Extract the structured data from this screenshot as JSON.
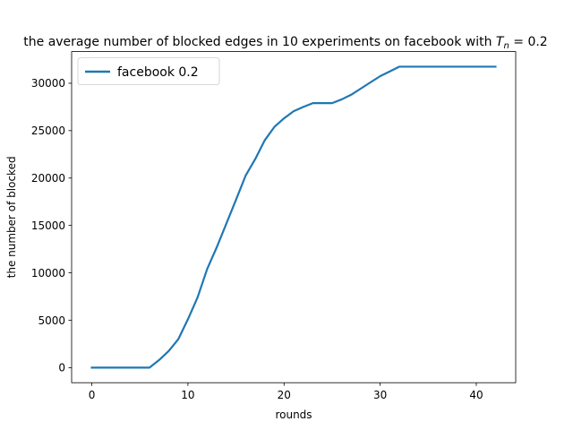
{
  "chart_data": {
    "type": "line",
    "title_prefix": "the average number of blocked edges in 10 experiments on facebook with ",
    "title_var": "T",
    "title_sub": "n",
    "title_suffix": " = 0.2",
    "xlabel": "rounds",
    "ylabel": "the number of blocked",
    "xlim": [
      -2.1,
      44.1
    ],
    "ylim": [
      -1590,
      33340
    ],
    "xticks": [
      0,
      10,
      20,
      30,
      40
    ],
    "yticks": [
      0,
      5000,
      10000,
      15000,
      20000,
      25000,
      30000
    ],
    "grid": false,
    "legend_position": "upper-left",
    "color": "#1f77b4",
    "series": [
      {
        "name": "facebook 0.2",
        "x": [
          0,
          1,
          2,
          3,
          4,
          5,
          6,
          7,
          8,
          9,
          10,
          11,
          12,
          13,
          14,
          15,
          16,
          17,
          18,
          19,
          20,
          21,
          22,
          23,
          24,
          25,
          26,
          27,
          28,
          29,
          30,
          31,
          32,
          33,
          34,
          35,
          36,
          37,
          38,
          39,
          40,
          41,
          42
        ],
        "values": [
          0,
          0,
          0,
          0,
          0,
          0,
          0,
          800,
          1750,
          3000,
          5100,
          7400,
          10400,
          12700,
          15200,
          17700,
          20250,
          22000,
          24000,
          25400,
          26300,
          27050,
          27500,
          27900,
          27900,
          27900,
          28300,
          28800,
          29450,
          30100,
          30750,
          31250,
          31750,
          31750,
          31750,
          31750,
          31750,
          31750,
          31750,
          31750,
          31750,
          31750,
          31750
        ]
      }
    ]
  }
}
